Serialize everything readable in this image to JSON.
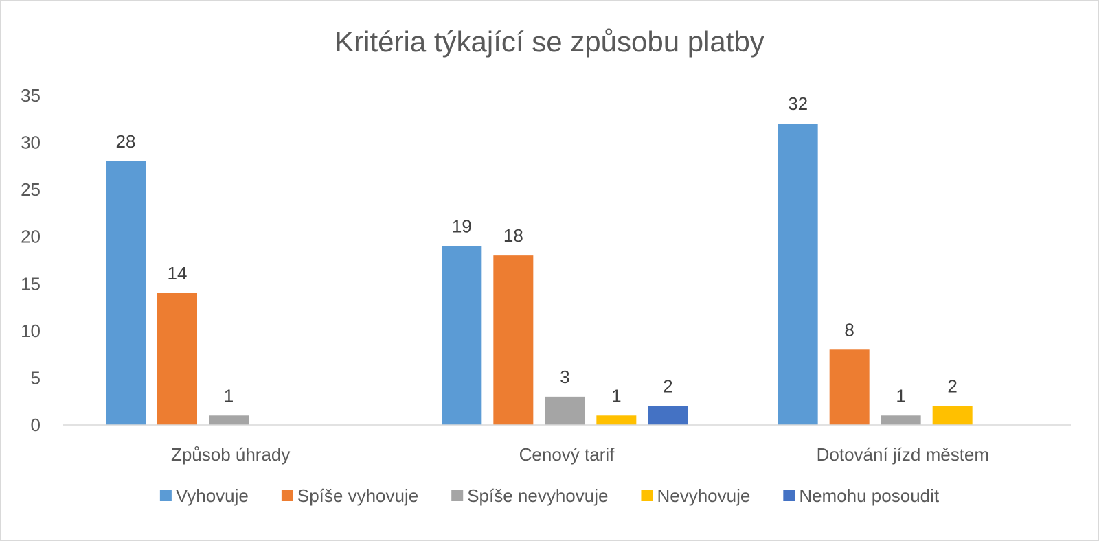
{
  "chart_data": {
    "type": "bar",
    "title": "Kritéria týkající se způsobu platby",
    "categories": [
      "Způsob úhrady",
      "Cenový tarif",
      "Dotování jízd městem"
    ],
    "series": [
      {
        "name": "Vyhovuje",
        "color": "#5B9BD5",
        "values": [
          28,
          19,
          32
        ]
      },
      {
        "name": "Spíše vyhovuje",
        "color": "#ED7D31",
        "values": [
          14,
          18,
          8
        ]
      },
      {
        "name": "Spíše nevyhovuje",
        "color": "#A5A5A5",
        "values": [
          1,
          3,
          1
        ]
      },
      {
        "name": "Nevyhovuje",
        "color": "#FFC000",
        "values": [
          null,
          1,
          2
        ]
      },
      {
        "name": "Nemohu posoudit",
        "color": "#4472C4",
        "values": [
          null,
          2,
          null
        ]
      }
    ],
    "ylim": [
      0,
      35
    ],
    "yticks": [
      0,
      5,
      10,
      15,
      20,
      25,
      30,
      35
    ],
    "grid": false,
    "legend": "bottom",
    "data_labels": true
  }
}
